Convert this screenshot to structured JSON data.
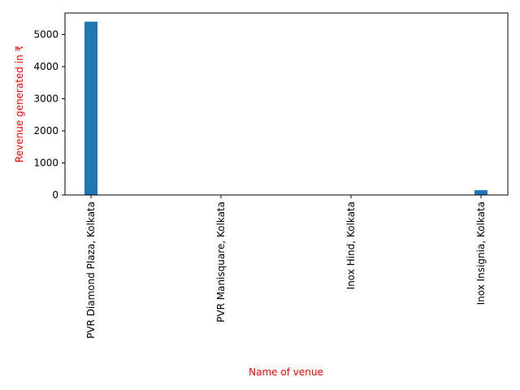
{
  "chart_data": {
    "type": "bar",
    "title": "",
    "xlabel": "Name of venue",
    "ylabel": "Revenue generated in ₹",
    "label_color": "#ff0000",
    "bar_color": "#1f77b4",
    "categories": [
      "PVR Diamond Plaza, Kolkata",
      "PVR Manisquare, Kolkata",
      "Inox Hind, Kolkata",
      "Inox Insignia, Kolkata"
    ],
    "values": [
      5400,
      0,
      0,
      150
    ],
    "ylim": [
      0,
      5670
    ],
    "yticks": [
      0,
      1000,
      2000,
      3000,
      4000,
      5000
    ],
    "ytick_labels": [
      "0",
      "1000",
      "2000",
      "3000",
      "4000",
      "5000"
    ],
    "grid": false,
    "legend": "none"
  }
}
